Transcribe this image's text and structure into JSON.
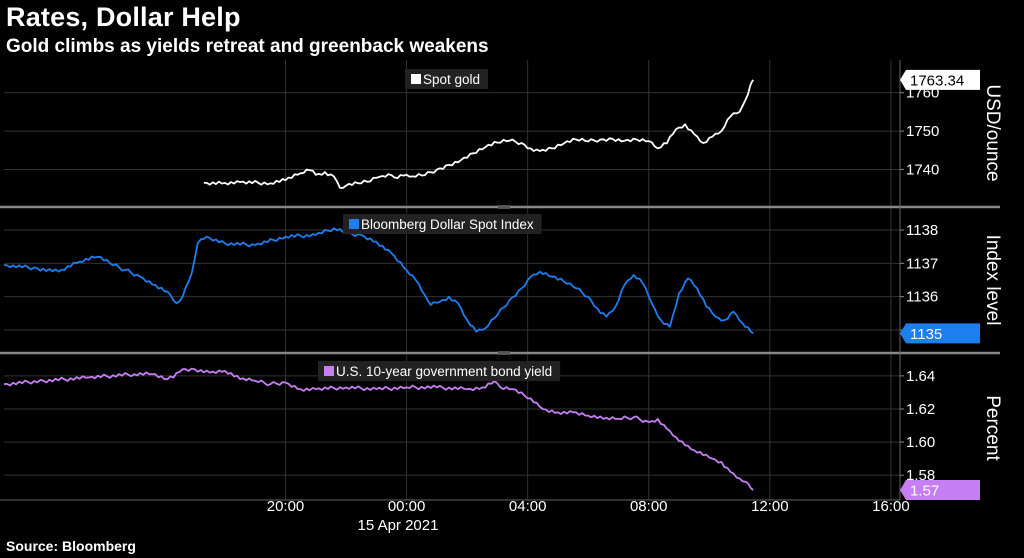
{
  "title": "Rates, Dollar Help",
  "subtitle": "Gold climbs as yields retreat and greenback weakens",
  "source": "Source: Bloomberg",
  "colors": {
    "gold": "#ffffff",
    "dollar": "#1d7ef0",
    "yield": "#c67ff2",
    "grid": "#333333",
    "divider": "#888888"
  },
  "chart_data": {
    "type": "line",
    "x_axis": {
      "unit": "hours from 20:00, 14 Apr 2021",
      "range": [
        -9.3,
        20.3
      ],
      "ticks": [
        {
          "value": 0,
          "label": "20:00"
        },
        {
          "value": 4,
          "label": "00:00"
        },
        {
          "value": 8,
          "label": "04:00"
        },
        {
          "value": 12,
          "label": "08:00"
        },
        {
          "value": 16,
          "label": "12:00"
        },
        {
          "value": 20,
          "label": "16:00"
        }
      ],
      "date_label": "15 Apr 2021"
    },
    "panels": [
      {
        "key": "gold",
        "legend": "Spot gold",
        "unit_label": "USD/ounce",
        "ylim": [
          1731,
          1768
        ],
        "ticks": [
          1740,
          1750,
          1760
        ],
        "last_value_label": "1763.34",
        "points": [
          [
            -2.7,
            1736.5
          ],
          [
            -2.0,
            1736.5
          ],
          [
            -1.5,
            1736.7
          ],
          [
            -0.5,
            1736.4
          ],
          [
            0.0,
            1737.2
          ],
          [
            0.5,
            1739.0
          ],
          [
            0.8,
            1739.8
          ],
          [
            1.0,
            1738.6
          ],
          [
            1.3,
            1739.3
          ],
          [
            1.6,
            1738.2
          ],
          [
            1.8,
            1735.2
          ],
          [
            2.0,
            1735.8
          ],
          [
            2.4,
            1736.4
          ],
          [
            2.8,
            1736.9
          ],
          [
            3.0,
            1737.8
          ],
          [
            3.2,
            1738.3
          ],
          [
            3.4,
            1738.8
          ],
          [
            3.6,
            1737.9
          ],
          [
            3.9,
            1738.4
          ],
          [
            4.2,
            1738.2
          ],
          [
            4.6,
            1738.5
          ],
          [
            5.0,
            1740.0
          ],
          [
            5.4,
            1741.2
          ],
          [
            5.8,
            1742.5
          ],
          [
            6.2,
            1744.2
          ],
          [
            6.6,
            1745.8
          ],
          [
            7.0,
            1747.0
          ],
          [
            7.4,
            1747.5
          ],
          [
            7.8,
            1746.9
          ],
          [
            8.1,
            1745.5
          ],
          [
            8.4,
            1744.8
          ],
          [
            8.8,
            1745.5
          ],
          [
            9.2,
            1746.8
          ],
          [
            9.6,
            1747.8
          ],
          [
            10.0,
            1747.3
          ],
          [
            10.4,
            1747.8
          ],
          [
            10.8,
            1748.0
          ],
          [
            11.2,
            1747.5
          ],
          [
            11.6,
            1747.8
          ],
          [
            12.0,
            1747.4
          ],
          [
            12.3,
            1745.5
          ],
          [
            12.6,
            1746.8
          ],
          [
            12.9,
            1750.5
          ],
          [
            13.2,
            1751.8
          ],
          [
            13.5,
            1749.2
          ],
          [
            13.8,
            1746.9
          ],
          [
            14.1,
            1748.5
          ],
          [
            14.4,
            1750.0
          ],
          [
            14.7,
            1753.8
          ],
          [
            15.0,
            1755.0
          ],
          [
            15.2,
            1758.2
          ],
          [
            15.35,
            1761.8
          ],
          [
            15.45,
            1763.34
          ]
        ]
      },
      {
        "key": "dollar",
        "legend": "Bloomberg Dollar Spot Index",
        "unit_label": "Index level",
        "ylim": [
          1134.4,
          1138.6
        ],
        "ticks": [
          1135,
          1136,
          1137,
          1138
        ],
        "last_value_label": "1135",
        "points": [
          [
            -9.3,
            1136.95
          ],
          [
            -8.2,
            1136.85
          ],
          [
            -7.5,
            1136.75
          ],
          [
            -6.8,
            1137.05
          ],
          [
            -6.2,
            1137.2
          ],
          [
            -5.8,
            1137.0
          ],
          [
            -5.3,
            1136.8
          ],
          [
            -4.8,
            1136.6
          ],
          [
            -4.3,
            1136.35
          ],
          [
            -3.9,
            1136.15
          ],
          [
            -3.6,
            1135.8
          ],
          [
            -3.4,
            1136.0
          ],
          [
            -3.1,
            1136.7
          ],
          [
            -2.9,
            1137.6
          ],
          [
            -2.6,
            1137.8
          ],
          [
            -2.0,
            1137.6
          ],
          [
            -1.0,
            1137.55
          ],
          [
            0.0,
            1137.8
          ],
          [
            1.0,
            1137.85
          ],
          [
            1.6,
            1138.05
          ],
          [
            2.0,
            1137.9
          ],
          [
            2.5,
            1137.85
          ],
          [
            3.0,
            1137.65
          ],
          [
            3.5,
            1137.3
          ],
          [
            4.0,
            1136.8
          ],
          [
            4.3,
            1136.5
          ],
          [
            4.6,
            1136.05
          ],
          [
            4.8,
            1135.75
          ],
          [
            5.1,
            1135.85
          ],
          [
            5.4,
            1136.0
          ],
          [
            5.7,
            1135.8
          ],
          [
            6.0,
            1135.3
          ],
          [
            6.3,
            1134.95
          ],
          [
            6.6,
            1135.05
          ],
          [
            7.0,
            1135.45
          ],
          [
            7.4,
            1135.9
          ],
          [
            7.8,
            1136.25
          ],
          [
            8.1,
            1136.6
          ],
          [
            8.4,
            1136.75
          ],
          [
            8.8,
            1136.6
          ],
          [
            9.2,
            1136.45
          ],
          [
            9.6,
            1136.25
          ],
          [
            10.0,
            1136.0
          ],
          [
            10.3,
            1135.65
          ],
          [
            10.6,
            1135.4
          ],
          [
            10.9,
            1135.7
          ],
          [
            11.2,
            1136.35
          ],
          [
            11.5,
            1136.65
          ],
          [
            11.8,
            1136.4
          ],
          [
            12.1,
            1135.8
          ],
          [
            12.4,
            1135.3
          ],
          [
            12.7,
            1135.1
          ],
          [
            13.0,
            1136.1
          ],
          [
            13.3,
            1136.55
          ],
          [
            13.6,
            1136.25
          ],
          [
            13.9,
            1135.7
          ],
          [
            14.2,
            1135.4
          ],
          [
            14.5,
            1135.3
          ],
          [
            14.8,
            1135.55
          ],
          [
            15.1,
            1135.2
          ],
          [
            15.45,
            1134.9
          ]
        ]
      },
      {
        "key": "yield",
        "legend": "U.S. 10-year government bond yield",
        "unit_label": "Percent",
        "ylim": [
          1.565,
          1.652
        ],
        "ticks": [
          1.58,
          1.6,
          1.62,
          1.64
        ],
        "last_value_label": "1.57",
        "points": [
          [
            -9.3,
            1.635
          ],
          [
            -8.0,
            1.637
          ],
          [
            -6.5,
            1.639
          ],
          [
            -5.0,
            1.641
          ],
          [
            -4.4,
            1.641
          ],
          [
            -4.0,
            1.638
          ],
          [
            -3.7,
            1.639
          ],
          [
            -3.4,
            1.644
          ],
          [
            -3.0,
            1.644
          ],
          [
            -2.5,
            1.642
          ],
          [
            -2.0,
            1.643
          ],
          [
            -1.5,
            1.638
          ],
          [
            -1.0,
            1.637
          ],
          [
            -0.5,
            1.635
          ],
          [
            0.0,
            1.636
          ],
          [
            0.5,
            1.632
          ],
          [
            1.0,
            1.632
          ],
          [
            2.0,
            1.633
          ],
          [
            3.0,
            1.632
          ],
          [
            4.0,
            1.633
          ],
          [
            5.0,
            1.633
          ],
          [
            6.0,
            1.632
          ],
          [
            6.5,
            1.633
          ],
          [
            6.9,
            1.637
          ],
          [
            7.1,
            1.633
          ],
          [
            7.5,
            1.632
          ],
          [
            7.9,
            1.628
          ],
          [
            8.2,
            1.624
          ],
          [
            8.5,
            1.62
          ],
          [
            9.0,
            1.618
          ],
          [
            9.5,
            1.618
          ],
          [
            10.0,
            1.616
          ],
          [
            10.5,
            1.614
          ],
          [
            11.0,
            1.614
          ],
          [
            11.5,
            1.615
          ],
          [
            12.0,
            1.612
          ],
          [
            12.3,
            1.614
          ],
          [
            12.6,
            1.608
          ],
          [
            12.9,
            1.603
          ],
          [
            13.2,
            1.598
          ],
          [
            13.5,
            1.595
          ],
          [
            13.8,
            1.592
          ],
          [
            14.1,
            1.59
          ],
          [
            14.4,
            1.588
          ],
          [
            14.7,
            1.582
          ],
          [
            15.0,
            1.578
          ],
          [
            15.2,
            1.576
          ],
          [
            15.45,
            1.571
          ]
        ]
      }
    ]
  }
}
